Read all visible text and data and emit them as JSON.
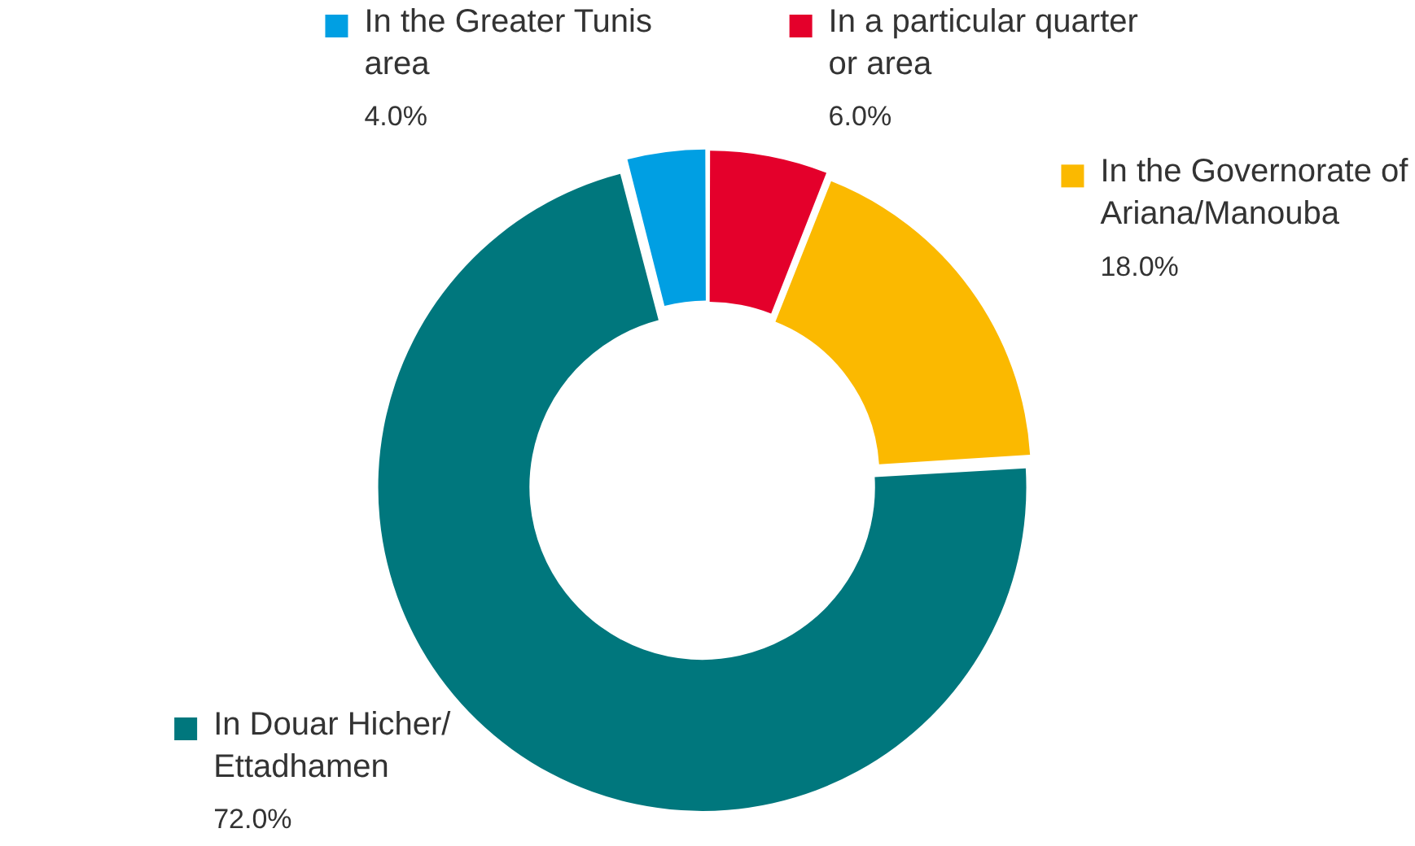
{
  "chart_data": {
    "type": "donut",
    "categories": [
      "In a particular quarter or area",
      "In the Governorate of Ariana/Manouba",
      "In Douar Hicher/ Ettadhamen",
      "In the Greater Tunis area"
    ],
    "values": [
      6,
      18,
      72,
      4
    ],
    "colors": [
      "#e4002b",
      "#fbb900",
      "#00777d",
      "#009fe3"
    ],
    "value_labels": [
      "6.0%",
      "18.0%",
      "72.0%",
      "4.0%"
    ],
    "legend": "top"
  }
}
